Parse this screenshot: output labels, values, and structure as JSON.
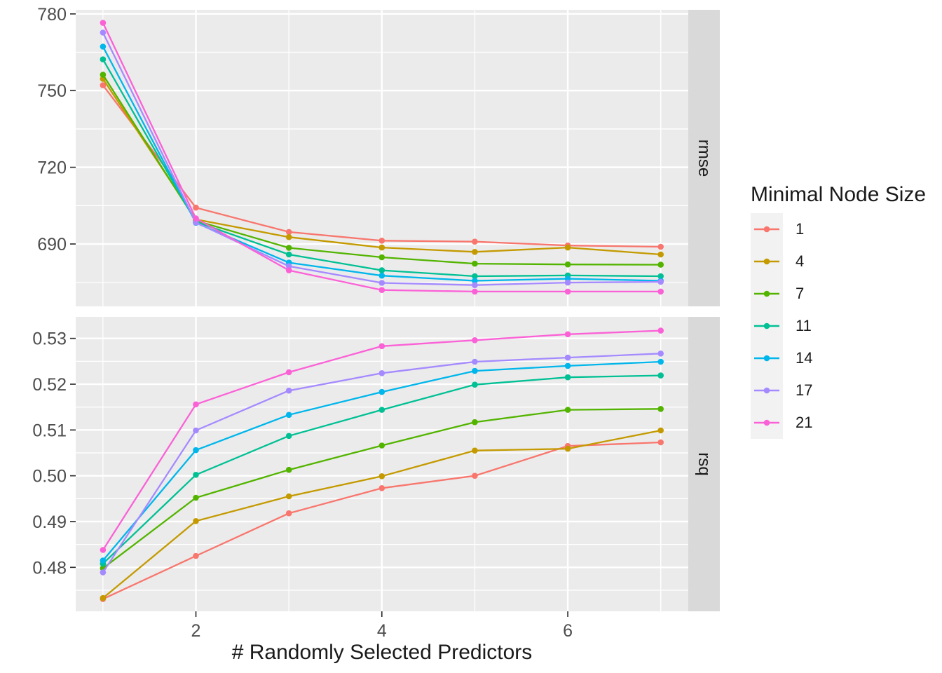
{
  "figure": {
    "background": "#FFFFFF",
    "panel_bg": "#EBEBEB",
    "strip_bg": "#D9D9D9",
    "grid_color": "#FFFFFF",
    "tick_color": "#333333",
    "axis_text_color": "#4D4D4D",
    "text_color": "#1A1A1A",
    "legend_key_bg": "#F2F2F2"
  },
  "axes": {
    "x_title": "# Randomly Selected Predictors",
    "x_tick_labels": [
      "2",
      "4",
      "6"
    ]
  },
  "legend": {
    "title": "Minimal Node Size",
    "entries": [
      {
        "label": "1",
        "color": "#F8766D"
      },
      {
        "label": "4",
        "color": "#C49A00"
      },
      {
        "label": "7",
        "color": "#53B400"
      },
      {
        "label": "11",
        "color": "#00C094"
      },
      {
        "label": "14",
        "color": "#00B6EB"
      },
      {
        "label": "17",
        "color": "#A58AFF"
      },
      {
        "label": "21",
        "color": "#FB61D7"
      }
    ]
  },
  "chart_data": {
    "type": "line",
    "title": "",
    "xlabel": "# Randomly Selected Predictors",
    "ylabel": "",
    "legend_title": "Minimal Node Size",
    "legend_position": "right",
    "grid": true,
    "x": [
      1,
      2,
      3,
      4,
      5,
      6,
      7
    ],
    "xlim": [
      0.707,
      7.296
    ],
    "xticks_major": [
      2,
      4,
      6
    ],
    "xtick_labels": [
      "2",
      "4",
      "6"
    ],
    "xticks_minor": [
      1,
      3,
      5,
      7
    ],
    "facets": [
      {
        "label": "rmse",
        "ylim": [
          665.6,
          781.6
        ],
        "yticks": [
          690,
          720,
          750,
          780
        ],
        "ytick_labels": [
          "690",
          "720",
          "750",
          "780"
        ],
        "yticks_minor": [
          675,
          705,
          735,
          765
        ],
        "series": [
          {
            "name": "1",
            "color": "#F8766D",
            "values": [
              752.1,
              704.2,
              694.7,
              691.3,
              690.9,
              689.4,
              688.9
            ]
          },
          {
            "name": "4",
            "color": "#C49A00",
            "values": [
              754.6,
              699.6,
              692.7,
              688.6,
              686.9,
              688.6,
              685.9
            ]
          },
          {
            "name": "7",
            "color": "#53B400",
            "values": [
              756.2,
              699.1,
              688.5,
              684.8,
              682.3,
              682.0,
              681.9
            ]
          },
          {
            "name": "11",
            "color": "#00C094",
            "values": [
              762.2,
              698.7,
              685.9,
              679.7,
              677.4,
              677.7,
              677.4
            ]
          },
          {
            "name": "14",
            "color": "#00B6EB",
            "values": [
              767.2,
              698.3,
              682.7,
              677.6,
              675.6,
              676.4,
              675.6
            ]
          },
          {
            "name": "17",
            "color": "#A58AFF",
            "values": [
              772.7,
              698.4,
              681.3,
              674.8,
              673.9,
              674.9,
              675.2
            ]
          },
          {
            "name": "21",
            "color": "#FB61D7",
            "values": [
              776.5,
              700.0,
              679.7,
              672.0,
              671.4,
              671.4,
              671.4
            ]
          }
        ]
      },
      {
        "label": "rsq",
        "ylim": [
          0.4704,
          0.5347
        ],
        "yticks": [
          0.48,
          0.49,
          0.5,
          0.51,
          0.52,
          0.53
        ],
        "ytick_labels": [
          "0.48",
          "0.49",
          "0.50",
          "0.51",
          "0.52",
          "0.53"
        ],
        "yticks_minor": [
          0.475,
          0.485,
          0.495,
          0.505,
          0.515,
          0.525
        ],
        "series": [
          {
            "name": "1",
            "color": "#F8766D",
            "values": [
              0.4731,
              0.4825,
              0.4918,
              0.4973,
              0.5,
              0.5065,
              0.5073
            ]
          },
          {
            "name": "4",
            "color": "#C49A00",
            "values": [
              0.4733,
              0.4901,
              0.4955,
              0.4999,
              0.5055,
              0.5059,
              0.5099
            ]
          },
          {
            "name": "7",
            "color": "#53B400",
            "values": [
              0.4798,
              0.4952,
              0.5013,
              0.5066,
              0.5117,
              0.5144,
              0.5146
            ]
          },
          {
            "name": "11",
            "color": "#00C094",
            "values": [
              0.4808,
              0.5002,
              0.5087,
              0.5144,
              0.5199,
              0.5215,
              0.5219
            ]
          },
          {
            "name": "14",
            "color": "#00B6EB",
            "values": [
              0.4815,
              0.5056,
              0.5133,
              0.5183,
              0.5229,
              0.524,
              0.5249
            ]
          },
          {
            "name": "17",
            "color": "#A58AFF",
            "values": [
              0.4789,
              0.5099,
              0.5186,
              0.5224,
              0.5249,
              0.5258,
              0.5267
            ]
          },
          {
            "name": "21",
            "color": "#FB61D7",
            "values": [
              0.4838,
              0.5156,
              0.5226,
              0.5283,
              0.5296,
              0.5309,
              0.5317
            ]
          }
        ]
      }
    ]
  }
}
